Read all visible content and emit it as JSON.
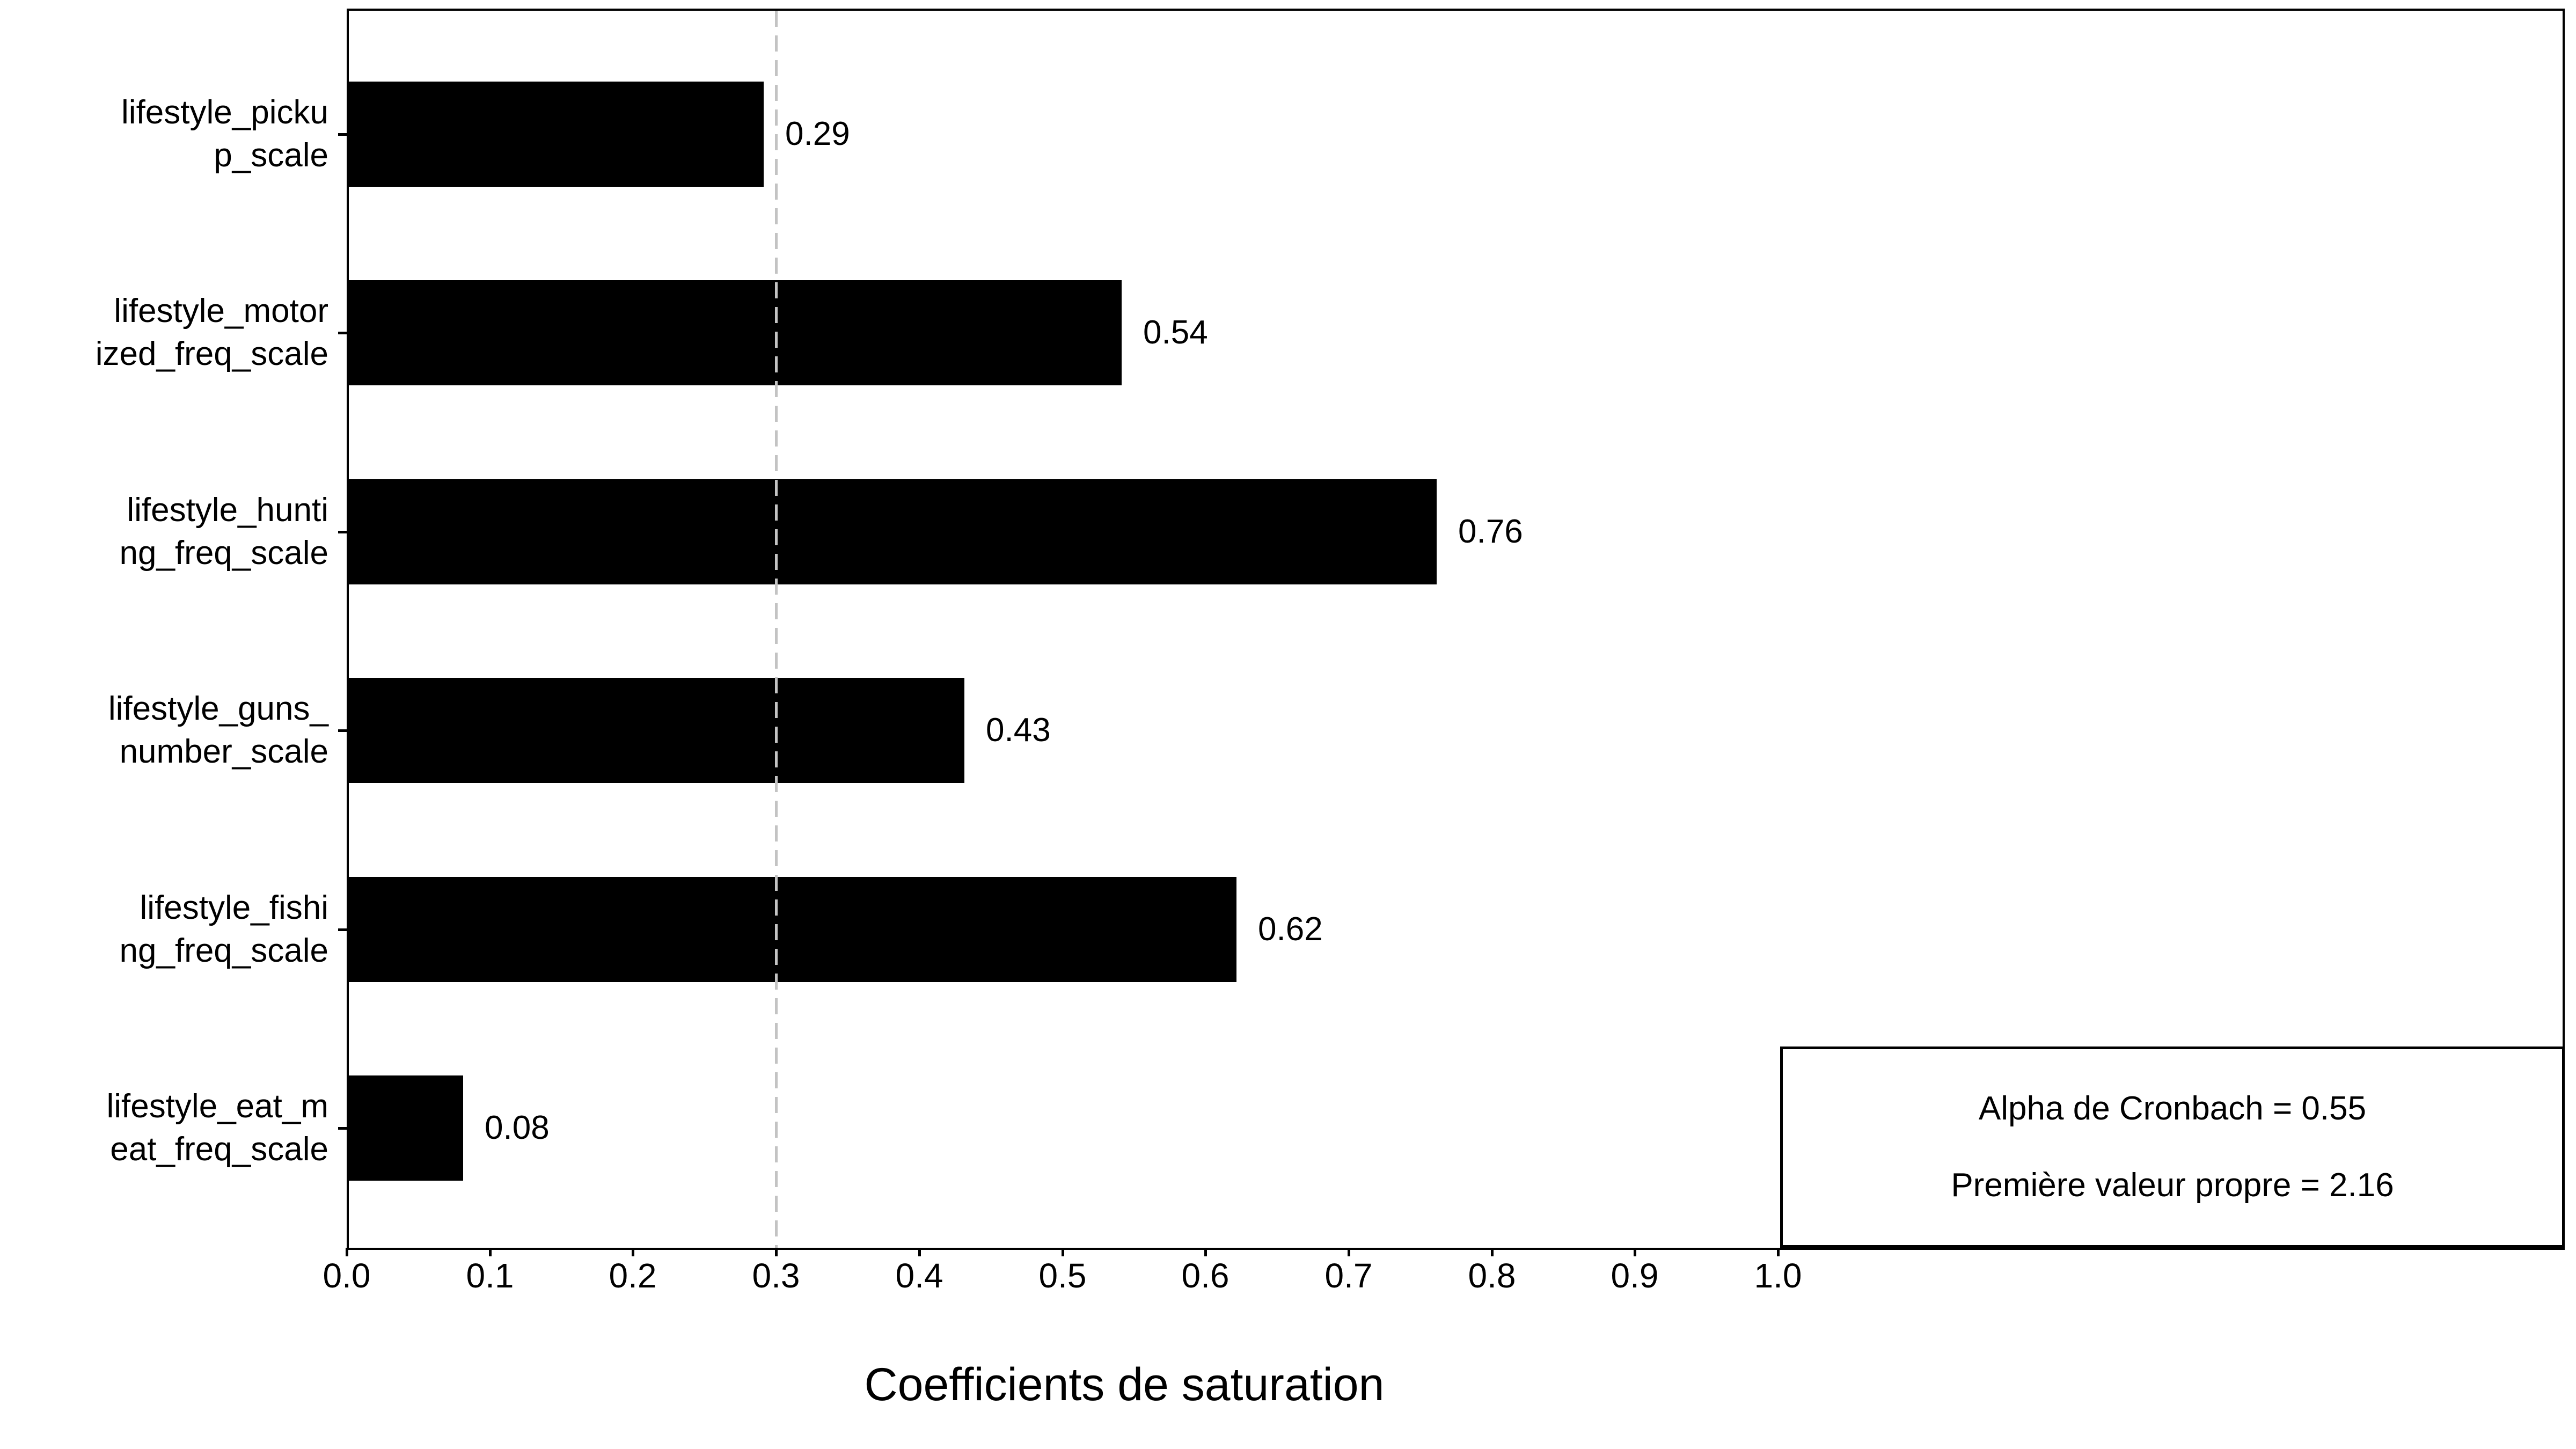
{
  "chart_data": {
    "type": "bar",
    "orientation": "horizontal",
    "xlabel": "Coefficients de saturation",
    "categories": [
      "lifestyle_pickup_scale",
      "lifestyle_motorized_freq_scale",
      "lifestyle_hunting_freq_scale",
      "lifestyle_guns_number_scale",
      "lifestyle_fishing_freq_scale",
      "lifestyle_eat_meat_freq_scale"
    ],
    "category_display": [
      "lifestyle_picku\np_scale",
      "lifestyle_motor\nized_freq_scale",
      "lifestyle_hunti\nng_freq_scale",
      "lifestyle_guns_\nnumber_scale",
      "lifestyle_fishi\nng_freq_scale",
      "lifestyle_eat_m\neat_freq_scale"
    ],
    "values": [
      0.29,
      0.54,
      0.76,
      0.43,
      0.62,
      0.08
    ],
    "bar_labels": [
      "0.29",
      "0.54",
      "0.76",
      "0.43",
      "0.62",
      "0.08"
    ],
    "x_ticks": [
      "0.0",
      "0.1",
      "0.2",
      "0.3",
      "0.4",
      "0.5",
      "0.6",
      "0.7",
      "0.8",
      "0.9",
      "1.0"
    ],
    "x_tick_values": [
      0.0,
      0.1,
      0.2,
      0.3,
      0.4,
      0.5,
      0.6,
      0.7,
      0.8,
      0.9,
      1.0
    ],
    "xlim": [
      0.0,
      1.55
    ],
    "threshold_x": 0.3,
    "grid": false,
    "legend": false,
    "bar_color": "#000000",
    "threshold_color": "#c3c3c3",
    "annotation": {
      "line1": "Alpha de Cronbach = 0.55",
      "line2": "Première valeur propre = 2.16"
    }
  }
}
